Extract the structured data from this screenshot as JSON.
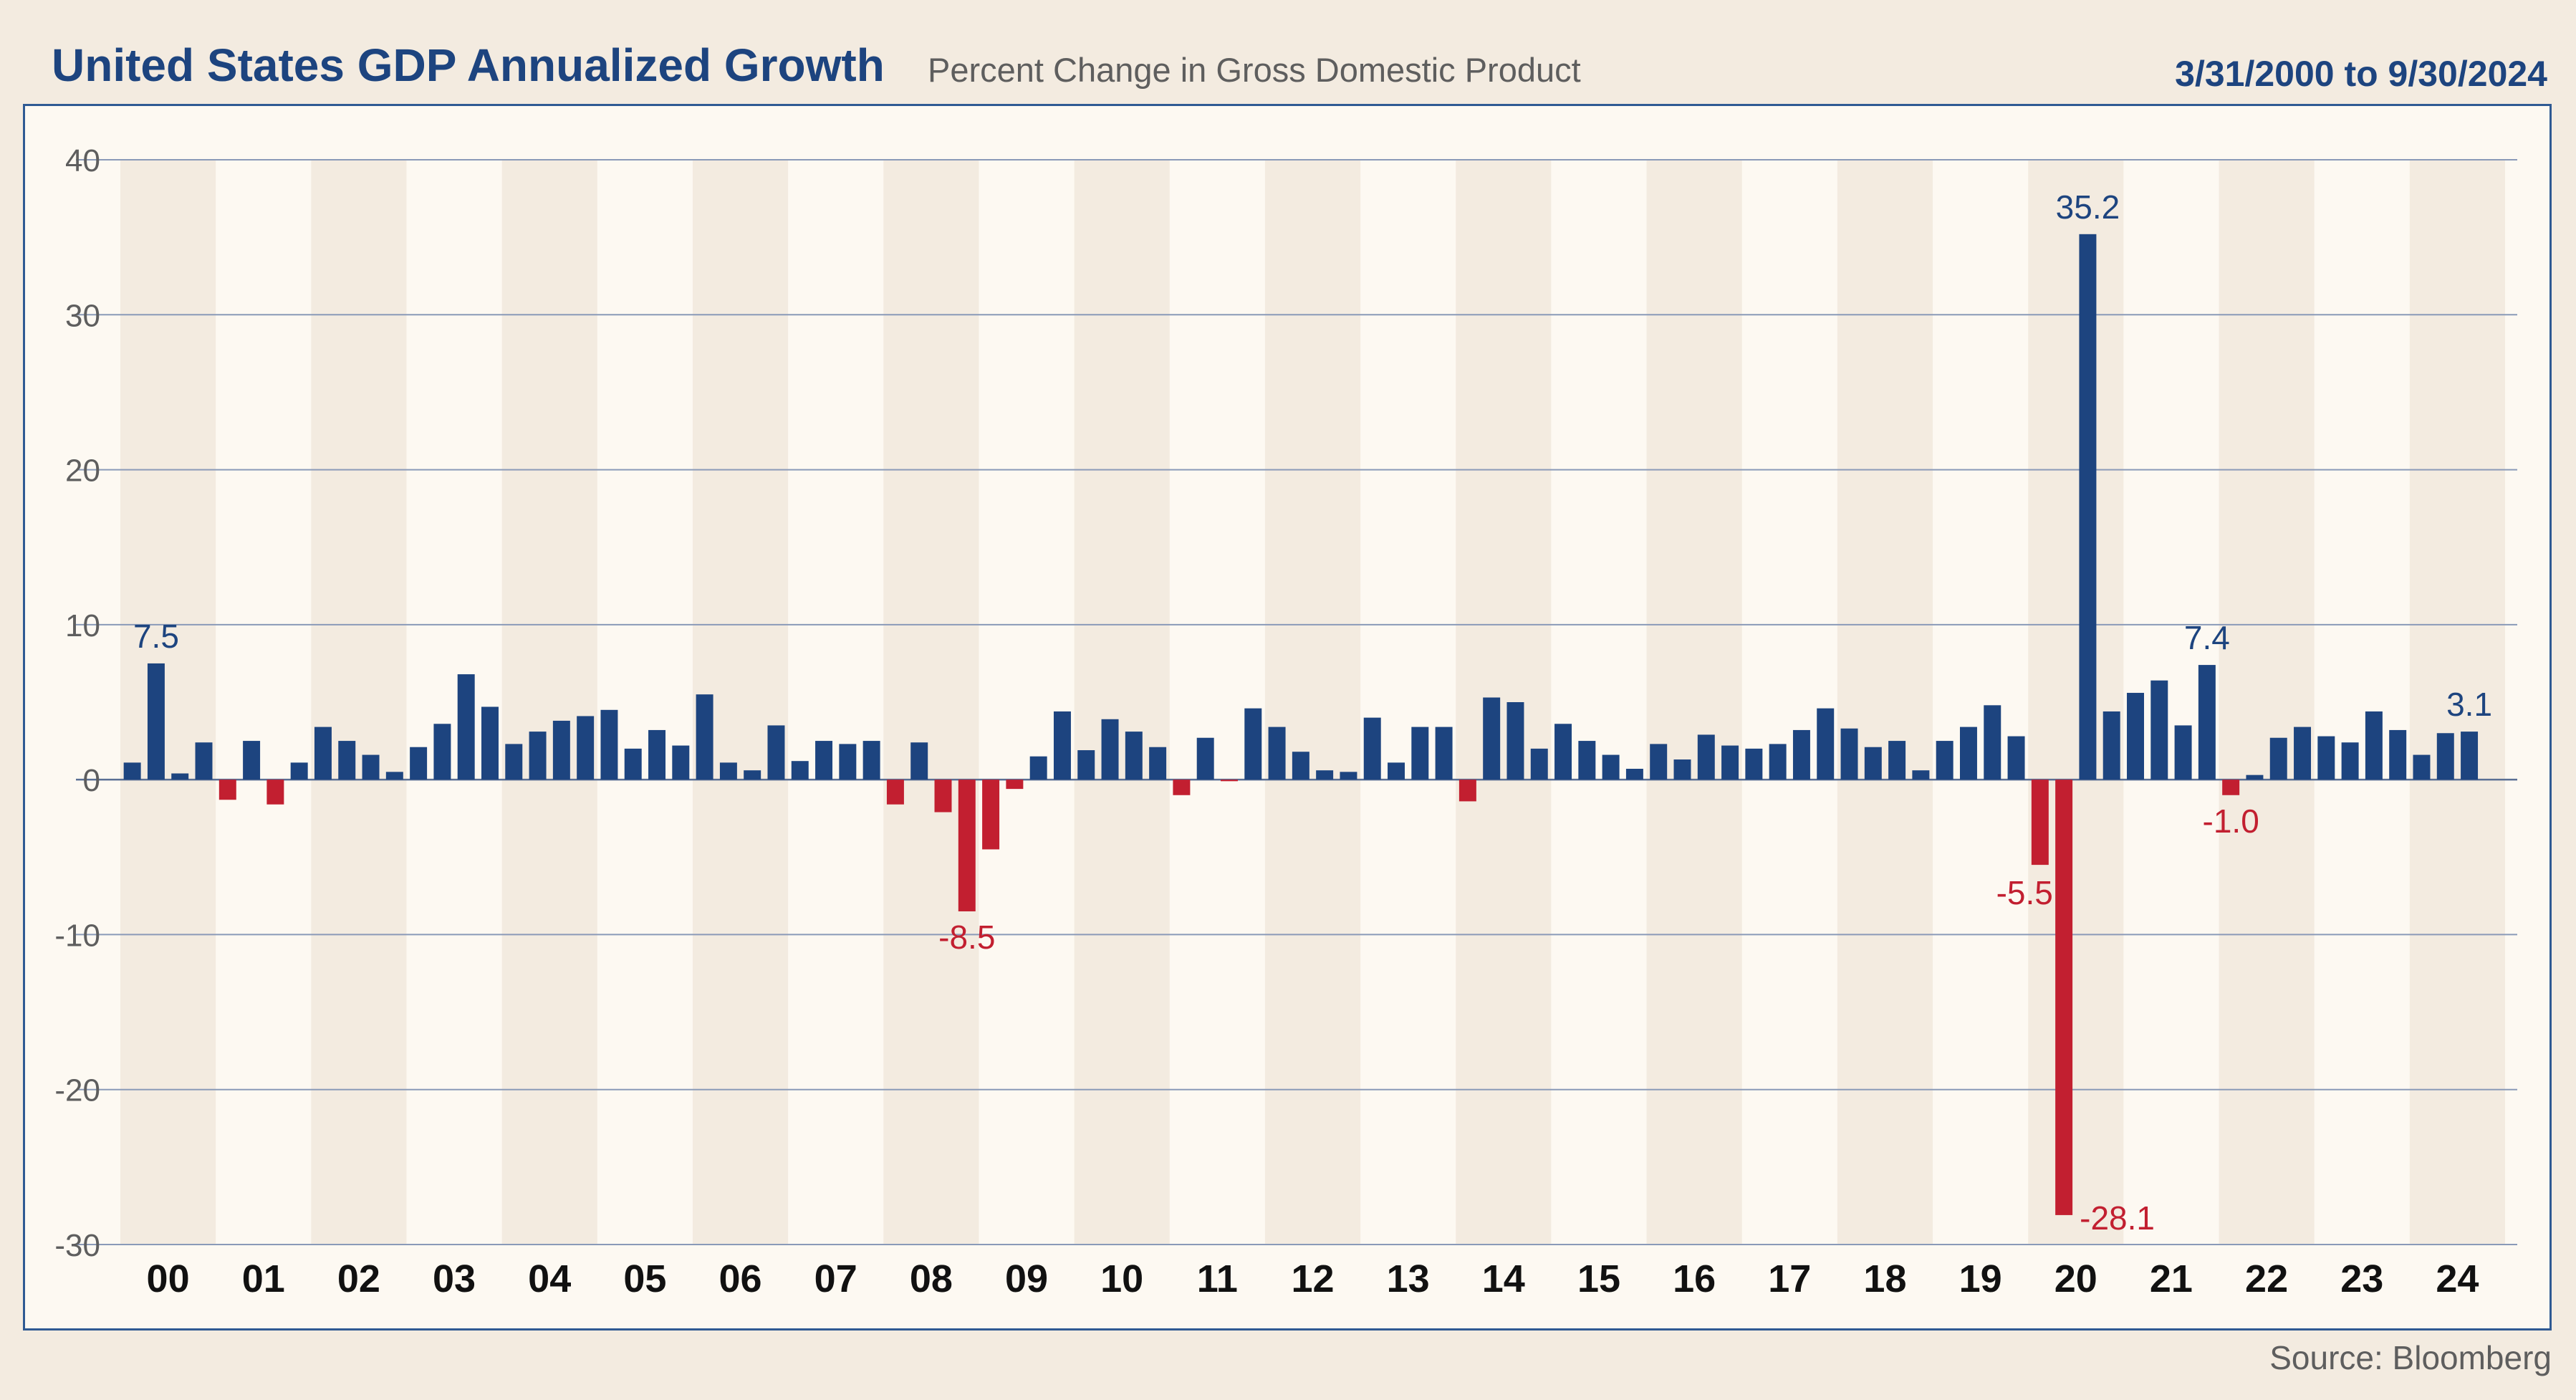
{
  "header": {
    "title": "United States GDP Annualized Growth",
    "subtitle": "Percent Change in Gross Domestic Product",
    "date_range": "3/31/2000 to 9/30/2024"
  },
  "footer": {
    "source": "Source: Bloomberg"
  },
  "colors": {
    "positive": "#1d447f",
    "negative": "#c21f30",
    "stripe": "#f3ebe0",
    "plot_background": "#fdf9f2",
    "gridline": "#8a9ab8"
  },
  "chart_data": {
    "type": "bar",
    "title": "United States GDP Annualized Growth",
    "subtitle": "Percent Change in Gross Domestic Product",
    "xlabel": "",
    "ylabel": "",
    "ylim": [
      -30,
      40
    ],
    "yticks": [
      40,
      30,
      20,
      10,
      0,
      -10,
      -20,
      -30
    ],
    "grid": true,
    "legend": "none",
    "alternating_year_stripes": true,
    "years": [
      "00",
      "01",
      "02",
      "03",
      "04",
      "05",
      "06",
      "07",
      "08",
      "09",
      "10",
      "11",
      "12",
      "13",
      "14",
      "15",
      "16",
      "17",
      "18",
      "19",
      "20",
      "21",
      "22",
      "23",
      "24"
    ],
    "quarters_per_year": 4,
    "values": [
      1.1,
      7.5,
      0.4,
      2.4,
      -1.3,
      2.5,
      -1.6,
      1.1,
      3.4,
      2.5,
      1.6,
      0.5,
      2.1,
      3.6,
      6.8,
      4.7,
      2.3,
      3.1,
      3.8,
      4.1,
      4.5,
      2.0,
      3.2,
      2.2,
      5.5,
      1.1,
      0.6,
      3.5,
      1.2,
      2.5,
      2.3,
      2.5,
      -1.6,
      2.4,
      -2.1,
      -8.5,
      -4.5,
      -0.6,
      1.5,
      4.4,
      1.9,
      3.9,
      3.1,
      2.1,
      -1.0,
      2.7,
      -0.1,
      4.6,
      3.4,
      1.8,
      0.6,
      0.5,
      4.0,
      1.1,
      3.4,
      3.4,
      -1.4,
      5.3,
      5.0,
      2.0,
      3.6,
      2.5,
      1.6,
      0.7,
      2.3,
      1.3,
      2.9,
      2.2,
      2.0,
      2.3,
      3.2,
      4.6,
      3.3,
      2.1,
      2.5,
      0.6,
      2.5,
      3.4,
      4.8,
      2.8,
      -5.5,
      -28.1,
      35.2,
      4.4,
      5.6,
      6.4,
      3.5,
      7.4,
      -1.0,
      0.3,
      2.7,
      3.4,
      2.8,
      2.4,
      4.4,
      3.2,
      1.6,
      3.0,
      3.1
    ],
    "data_labels": [
      {
        "index": 1,
        "text": "7.5"
      },
      {
        "index": 35,
        "text": "-8.5"
      },
      {
        "index": 80,
        "text": "-5.5"
      },
      {
        "index": 81,
        "text": "-28.1"
      },
      {
        "index": 82,
        "text": "35.2"
      },
      {
        "index": 87,
        "text": "7.4"
      },
      {
        "index": 88,
        "text": "-1.0"
      },
      {
        "index": 98,
        "text": "3.1"
      }
    ]
  }
}
